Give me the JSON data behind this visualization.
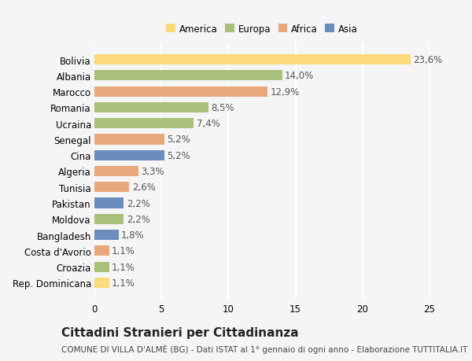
{
  "countries": [
    "Bolivia",
    "Albania",
    "Marocco",
    "Romania",
    "Ucraina",
    "Senegal",
    "Cina",
    "Algeria",
    "Tunisia",
    "Pakistan",
    "Moldova",
    "Bangladesh",
    "Costa d'Avorio",
    "Croazia",
    "Rep. Dominicana"
  ],
  "values": [
    23.6,
    14.0,
    12.9,
    8.5,
    7.4,
    5.2,
    5.2,
    3.3,
    2.6,
    2.2,
    2.2,
    1.8,
    1.1,
    1.1,
    1.1
  ],
  "labels": [
    "23,6%",
    "14,0%",
    "12,9%",
    "8,5%",
    "7,4%",
    "5,2%",
    "5,2%",
    "3,3%",
    "2,6%",
    "2,2%",
    "2,2%",
    "1,8%",
    "1,1%",
    "1,1%",
    "1,1%"
  ],
  "colors": [
    "#FADA7A",
    "#A8C07A",
    "#E8A87C",
    "#A8C07A",
    "#A8C07A",
    "#E8A87C",
    "#6B8CBE",
    "#E8A87C",
    "#E8A87C",
    "#6B8CBE",
    "#A8C07A",
    "#6B8CBE",
    "#E8A87C",
    "#A8C07A",
    "#FADA7A"
  ],
  "legend_labels": [
    "America",
    "Europa",
    "Africa",
    "Asia"
  ],
  "legend_colors": [
    "#FADA7A",
    "#A8C07A",
    "#E8A87C",
    "#6B8CBE"
  ],
  "title": "Cittadini Stranieri per Cittadinanza",
  "subtitle": "COMUNE DI VILLA D'ALMÈ (BG) - Dati ISTAT al 1° gennaio di ogni anno - Elaborazione TUTTITALIA.IT",
  "xlim": [
    0,
    25
  ],
  "xticks": [
    0,
    5,
    10,
    15,
    20,
    25
  ],
  "background_color": "#f5f5f5",
  "grid_color": "#ffffff",
  "bar_height": 0.65,
  "label_fontsize": 8.5,
  "tick_fontsize": 8.5,
  "title_fontsize": 11,
  "subtitle_fontsize": 7.5,
  "value_label_fontsize": 8.5,
  "value_label_color": "#555555"
}
